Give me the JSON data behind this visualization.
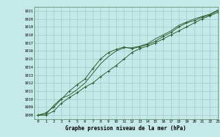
{
  "title": "Graphe pression niveau de la mer (hPa)",
  "xlim": [
    -0.5,
    23
  ],
  "ylim": [
    1007.5,
    1021.5
  ],
  "yticks": [
    1008,
    1009,
    1010,
    1011,
    1012,
    1013,
    1014,
    1015,
    1016,
    1017,
    1018,
    1019,
    1020,
    1021
  ],
  "xticks": [
    0,
    1,
    2,
    3,
    4,
    5,
    6,
    7,
    8,
    9,
    10,
    11,
    12,
    13,
    14,
    15,
    16,
    17,
    18,
    19,
    20,
    21,
    22,
    23
  ],
  "bg_color": "#c5e8e8",
  "grid_color": "#9bbfbf",
  "line_color": "#2d5a2d",
  "series": [
    [
      1008.0,
      1008.3,
      1009.0,
      1010.0,
      1011.0,
      1011.8,
      1012.5,
      1013.8,
      1015.0,
      1015.8,
      1016.2,
      1016.5,
      1016.3,
      1016.5,
      1016.8,
      1017.2,
      1017.8,
      1018.3,
      1019.0,
      1019.5,
      1019.8,
      1020.2,
      1020.5,
      1021.0
    ],
    [
      1008.0,
      1008.1,
      1009.2,
      1010.1,
      1010.5,
      1011.2,
      1012.0,
      1013.2,
      1014.4,
      1015.3,
      1016.0,
      1016.4,
      1016.4,
      1016.6,
      1016.9,
      1017.5,
      1018.0,
      1018.5,
      1019.2,
      1019.6,
      1020.0,
      1020.3,
      1020.6,
      1021.1
    ],
    [
      1008.0,
      1008.0,
      1008.5,
      1009.5,
      1010.2,
      1010.8,
      1011.5,
      1012.0,
      1012.8,
      1013.5,
      1014.2,
      1015.0,
      1015.8,
      1016.3,
      1016.6,
      1017.0,
      1017.5,
      1018.0,
      1018.5,
      1019.0,
      1019.5,
      1020.0,
      1020.4,
      1020.8
    ]
  ],
  "title_fontsize": 5.5,
  "tick_fontsize": 4.0,
  "linewidth": 0.7,
  "markersize": 2.5,
  "markeredgewidth": 0.7
}
